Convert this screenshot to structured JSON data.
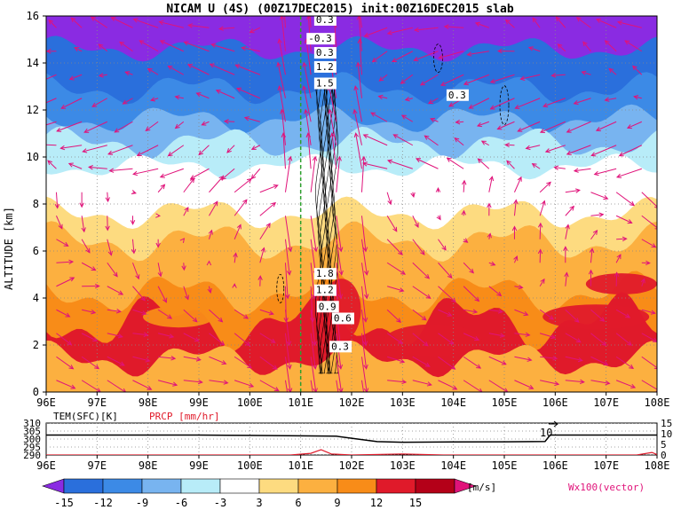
{
  "title": "NICAM U (4S) (00Z17DEC2015) init:00Z16DEC2015 slab",
  "colors": {
    "purple": "#8a2be2",
    "indigo": "#6a39cf",
    "blue_dark": "#2a6fdc",
    "blue": "#3c8ae6",
    "blue_light": "#78b4f0",
    "cyan_light": "#b8ecf8",
    "white": "#ffffff",
    "yellow": "#fddb80",
    "orange_light": "#fcb040",
    "orange": "#f88c18",
    "red_orange": "#f05030",
    "red": "#e01a2a",
    "dark_red": "#b40018",
    "magenta": "#e0137a",
    "vector": "#e0137a",
    "green_line": "#2ca02c"
  },
  "chart_data": [
    {
      "type": "heatmap",
      "title": "NICAM U (4S) (00Z17DEC2015) init:00Z16DEC2015 slab",
      "xlabel": "",
      "ylabel": "ALTITUDE [km]",
      "x_ticks": [
        "96E",
        "97E",
        "98E",
        "99E",
        "100E",
        "101E",
        "102E",
        "103E",
        "104E",
        "105E",
        "106E",
        "107E",
        "108E"
      ],
      "y_ticks": [
        "0",
        "2",
        "4",
        "6",
        "8",
        "10",
        "12",
        "14",
        "16"
      ],
      "xlim": [
        96,
        108
      ],
      "ylim": [
        0,
        16
      ],
      "grid": true,
      "shaded_field": "zonal wind U [m/s]",
      "approx_layers_m_s": [
        {
          "altitude_km": [
            14.5,
            16
          ],
          "u": -16
        },
        {
          "altitude_km": [
            13,
            14.5
          ],
          "u": -12
        },
        {
          "altitude_km": [
            11.5,
            13
          ],
          "u": -9
        },
        {
          "altitude_km": [
            10.5,
            11.5
          ],
          "u": -6
        },
        {
          "altitude_km": [
            9.5,
            10.5
          ],
          "u": -3
        },
        {
          "altitude_km": [
            7.5,
            9.5
          ],
          "u": 0
        },
        {
          "altitude_km": [
            6,
            7.5
          ],
          "u": 4
        },
        {
          "altitude_km": [
            4,
            6
          ],
          "u": 7
        },
        {
          "altitude_km": [
            2,
            4
          ],
          "u": 10
        },
        {
          "altitude_km": [
            0,
            2
          ],
          "u": 8
        }
      ],
      "contour_labels": [
        "0.3",
        "-0.3",
        "0.3",
        "1.2",
        "1.5",
        "0.3",
        "1.8",
        "1.2",
        "0.9",
        "0.6",
        "0.3"
      ],
      "vertical_line_x": 101,
      "vector_legend": "Wx100(vector)"
    },
    {
      "type": "line",
      "title": "",
      "series": [
        {
          "name": "TEM(SFC)[K]",
          "color": "#000000",
          "x": [
            96,
            99,
            100,
            101,
            101.7,
            102,
            102.5,
            103,
            104,
            105,
            105.8,
            105.9,
            108
          ],
          "y": [
            302.5,
            302.5,
            302.3,
            302,
            301.8,
            300.5,
            298.4,
            298,
            298.2,
            298.3,
            298.5,
            302.5,
            302.5
          ]
        },
        {
          "name": "PRCP [mm/hr]",
          "color": "#e01a2a",
          "x": [
            96,
            100.8,
            101.2,
            101.4,
            101.6,
            102,
            103,
            103.8,
            104.5,
            105.5,
            106,
            107.6,
            107.9,
            108
          ],
          "y": [
            0,
            0,
            0.8,
            2.5,
            0.5,
            0,
            0.5,
            0,
            0,
            0,
            0,
            0,
            1.2,
            0.2
          ]
        }
      ],
      "x_ticks": [
        "96E",
        "97E",
        "98E",
        "99E",
        "100E",
        "101E",
        "102E",
        "103E",
        "104E",
        "105E",
        "106E",
        "107E",
        "108E"
      ],
      "y_ticks_left": [
        "290",
        "295",
        "300",
        "305",
        "310"
      ],
      "y_ticks_right": [
        "0",
        "5",
        "10",
        "15"
      ],
      "ylim_left": [
        290,
        310
      ],
      "ylim_right": [
        0,
        15
      ],
      "annotation": "10"
    }
  ],
  "colorbar": {
    "labels": [
      "-15",
      "-12",
      "-9",
      "-6",
      "-3",
      "3",
      "6",
      "9",
      "12",
      "15"
    ],
    "unit": "[m/s]",
    "colors": [
      "#8a2be2",
      "#2a6fdc",
      "#3c8ae6",
      "#78b4f0",
      "#b8ecf8",
      "#ffffff",
      "#fddb80",
      "#fcb040",
      "#f88c18",
      "#e01a2a",
      "#b40018",
      "#e0137a"
    ]
  }
}
